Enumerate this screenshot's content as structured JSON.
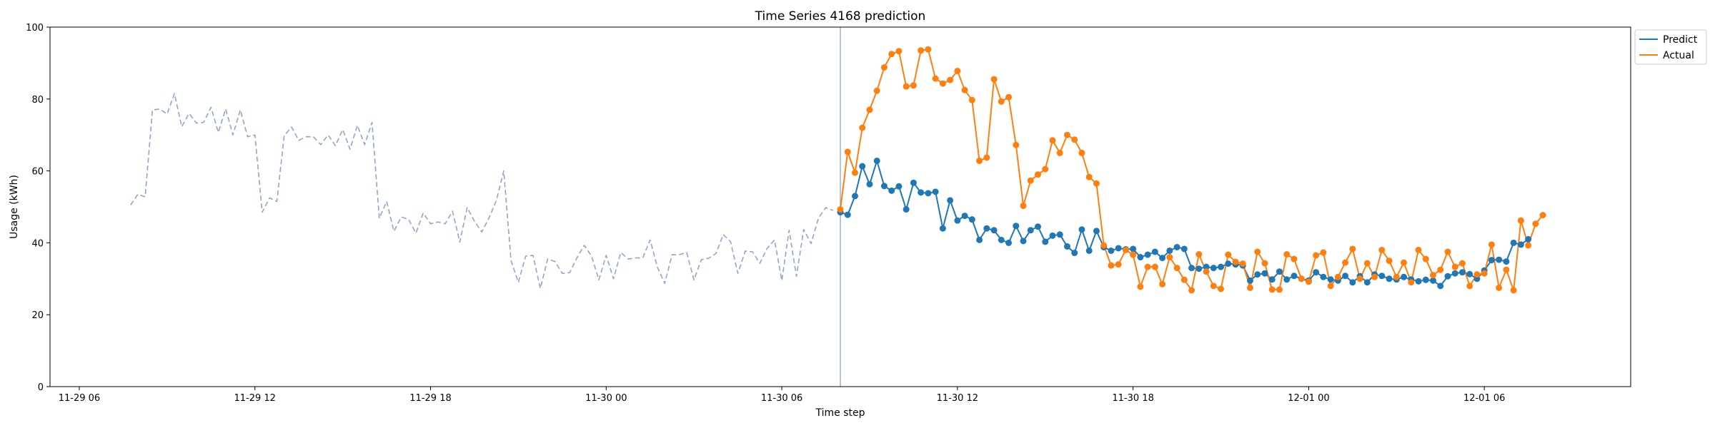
{
  "chart_data": {
    "type": "line",
    "title": "Time Series 4168 prediction",
    "xlabel": "Time step",
    "ylabel": "Usage (kWh)",
    "ylim": [
      0,
      100
    ],
    "xlim": [
      "2023-11-29 05:00",
      "2023-12-01 11:00"
    ],
    "yticks": [
      "0",
      "20",
      "40",
      "60",
      "80",
      "100"
    ],
    "xticks": [
      {
        "t": "2023-11-29 06:00",
        "label": "11-29 06"
      },
      {
        "t": "2023-11-29 12:00",
        "label": "11-29 12"
      },
      {
        "t": "2023-11-29 18:00",
        "label": "11-29 18"
      },
      {
        "t": "2023-11-30 00:00",
        "label": "11-30 00"
      },
      {
        "t": "2023-11-30 06:00",
        "label": "11-30 06"
      },
      {
        "t": "2023-11-30 12:00",
        "label": "11-30 12"
      },
      {
        "t": "2023-11-30 18:00",
        "label": "11-30 18"
      },
      {
        "t": "2023-12-01 00:00",
        "label": "12-01 00"
      },
      {
        "t": "2023-12-01 06:00",
        "label": "12-01 06"
      }
    ],
    "grid": false,
    "legend_position": "upper right, outside plot",
    "forecast_start": "2023-11-30 08:00",
    "step_minutes": 15,
    "series": [
      {
        "start": "2023-11-29 07:45",
        "color": "#8ea6c9",
        "style": "dashed",
        "values": [
          50.5,
          53.5,
          52.8,
          77.0,
          77.2,
          75.8,
          81.5,
          72.3,
          76.0,
          73.3,
          73.5,
          77.7,
          70.7,
          77.2,
          70.0,
          77.0,
          69.5,
          70.0,
          48.5,
          52.5,
          51.5,
          69.8,
          72.2,
          68.5,
          69.5,
          69.5,
          67.3,
          70.0,
          67.0,
          71.5,
          66.0,
          72.7,
          67.3,
          73.5,
          46.8,
          51.5,
          43.2,
          47.2,
          46.5,
          42.7,
          48.3,
          45.3,
          45.8,
          45.3,
          48.8,
          40.2,
          49.8,
          46.0,
          43.0,
          47.0,
          51.8,
          60.0,
          35.0,
          29.0,
          36.3,
          36.5,
          27.3,
          35.5,
          34.8,
          31.5,
          31.7,
          35.8,
          39.3,
          36.3,
          29.7,
          36.5,
          30.0,
          37.3,
          35.5,
          35.8,
          35.8,
          40.8,
          33.2,
          28.7,
          36.7,
          36.7,
          37.3,
          29.7,
          35.3,
          35.7,
          37.0,
          42.3,
          40.3,
          31.5,
          37.7,
          37.5,
          34.3,
          38.5,
          40.8,
          29.5,
          43.5,
          30.7,
          43.7,
          39.8,
          46.8,
          49.8,
          49.0
        ]
      },
      {
        "name": "Predict",
        "start": "2023-11-30 08:00",
        "color": "#1f77b4",
        "style": "solid",
        "values": [
          48.5,
          47.8,
          53.0,
          61.3,
          56.3,
          62.8,
          55.8,
          54.5,
          55.7,
          49.3,
          56.7,
          54.0,
          53.8,
          54.2,
          44.0,
          51.8,
          46.2,
          47.5,
          46.5,
          40.8,
          44.0,
          43.5,
          40.8,
          40.0,
          44.7,
          40.5,
          43.5,
          44.5,
          40.3,
          42.0,
          42.3,
          39.0,
          37.2,
          43.7,
          37.8,
          43.3,
          38.8,
          37.8,
          38.5,
          38.2,
          38.3,
          36.0,
          36.7,
          37.5,
          35.8,
          37.8,
          38.8,
          38.3,
          33.0,
          32.8,
          33.3,
          33.0,
          33.3,
          34.2,
          34.0,
          33.7,
          29.5,
          31.2,
          31.5,
          29.8,
          32.0,
          29.8,
          30.8,
          30.0,
          29.5,
          31.8,
          30.5,
          29.8,
          29.5,
          30.8,
          29.0,
          30.7,
          29.0,
          31.2,
          30.8,
          30.0,
          29.8,
          30.5,
          29.8,
          29.3,
          29.7,
          29.5,
          28.0,
          30.7,
          31.5,
          31.8,
          31.3,
          30.0,
          32.3,
          35.2,
          35.3,
          34.8,
          40.0,
          39.5,
          41.0
        ]
      },
      {
        "name": "Actual",
        "start": "2023-11-30 08:00",
        "color": "#ff7f0e",
        "style": "solid",
        "values": [
          49.3,
          65.3,
          59.5,
          72.0,
          77.0,
          82.3,
          88.8,
          92.5,
          93.3,
          83.5,
          83.8,
          93.5,
          93.8,
          85.7,
          84.3,
          85.3,
          87.8,
          82.5,
          79.7,
          62.8,
          63.7,
          85.5,
          79.3,
          80.5,
          67.2,
          50.3,
          57.3,
          59.0,
          60.5,
          68.5,
          65.0,
          70.0,
          68.7,
          65.0,
          58.3,
          56.5,
          39.3,
          33.7,
          34.0,
          38.0,
          36.7,
          27.8,
          33.3,
          33.3,
          28.5,
          36.0,
          33.0,
          29.7,
          26.8,
          36.8,
          32.0,
          28.0,
          27.2,
          36.7,
          34.7,
          34.2,
          27.5,
          37.5,
          34.3,
          27.0,
          27.0,
          36.8,
          35.5,
          30.0,
          29.2,
          36.5,
          37.3,
          28.0,
          30.5,
          34.5,
          38.3,
          30.0,
          34.3,
          30.5,
          38.0,
          35.0,
          30.5,
          34.5,
          29.0,
          38.0,
          35.5,
          31.0,
          32.5,
          37.5,
          33.3,
          34.3,
          28.0,
          31.2,
          31.5,
          39.5,
          27.5,
          32.5,
          26.8,
          46.2,
          39.3,
          45.3,
          47.7
        ]
      }
    ]
  }
}
